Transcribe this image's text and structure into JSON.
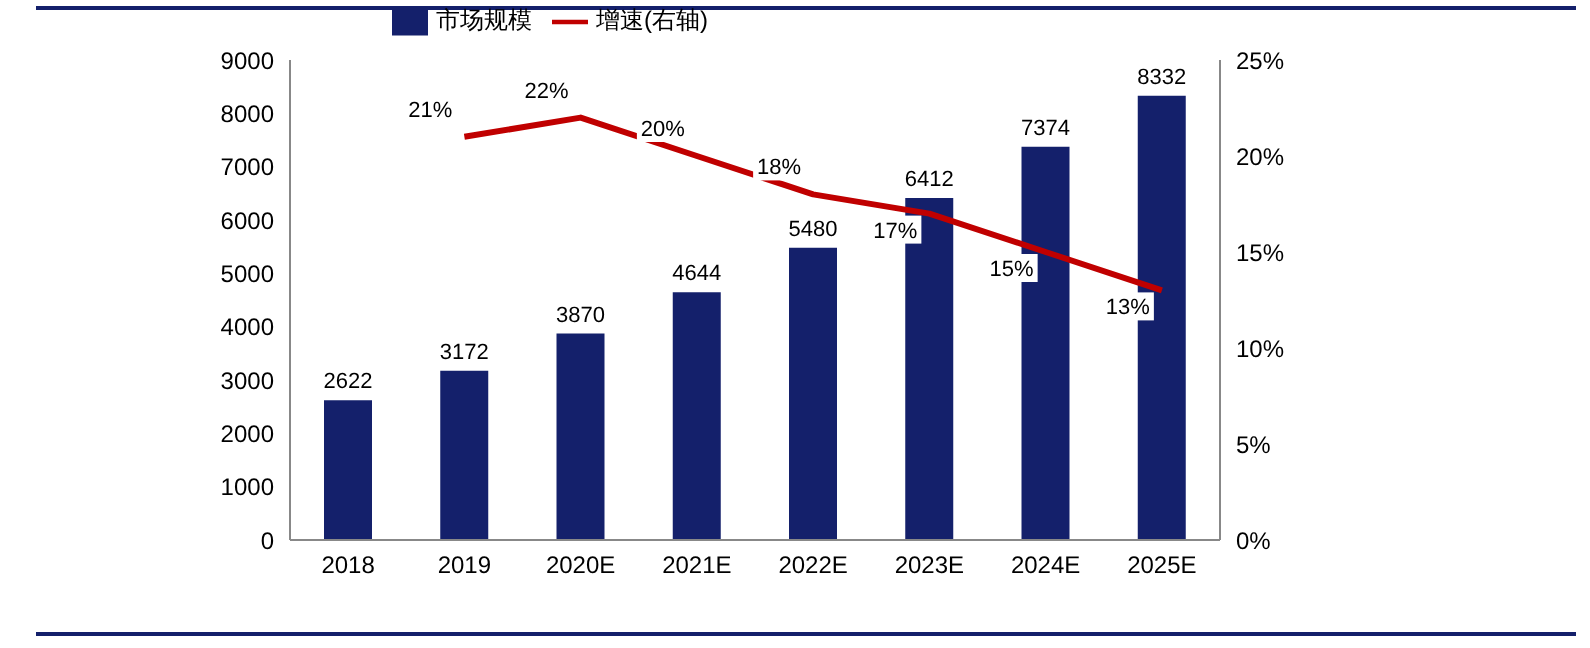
{
  "chart_data": {
    "type": "bar",
    "categories": [
      "2018",
      "2019",
      "2020E",
      "2021E",
      "2022E",
      "2023E",
      "2024E",
      "2025E"
    ],
    "series": [
      {
        "name": "市场规模",
        "type": "bar",
        "color": "#14206b",
        "values": [
          2622,
          3172,
          3870,
          4644,
          5480,
          6412,
          7374,
          8332
        ],
        "value_labels": [
          "2622",
          "3172",
          "3870",
          "4644",
          "5480",
          "6412",
          "7374",
          "8332"
        ]
      },
      {
        "name": "增速(右轴)",
        "type": "line",
        "axis": "y2",
        "color": "#c00000",
        "values": [
          null,
          21,
          22,
          20,
          18,
          17,
          15,
          13
        ],
        "value_labels": [
          null,
          "21%",
          "22%",
          "20%",
          "18%",
          "17%",
          "15%",
          "13%"
        ]
      }
    ],
    "ylim": [
      0,
      9000
    ],
    "yticks": [
      0,
      1000,
      2000,
      3000,
      4000,
      5000,
      6000,
      7000,
      8000,
      9000
    ],
    "y2lim": [
      0,
      25
    ],
    "y2ticks": [
      {
        "value": 0,
        "label": "0%"
      },
      {
        "value": 5,
        "label": "5%"
      },
      {
        "value": 10,
        "label": "10%"
      },
      {
        "value": 15,
        "label": "15%"
      },
      {
        "value": 20,
        "label": "20%"
      },
      {
        "value": 25,
        "label": "25%"
      }
    ],
    "grid": false,
    "legend": "top",
    "marker": "none",
    "line_style": "solid"
  }
}
